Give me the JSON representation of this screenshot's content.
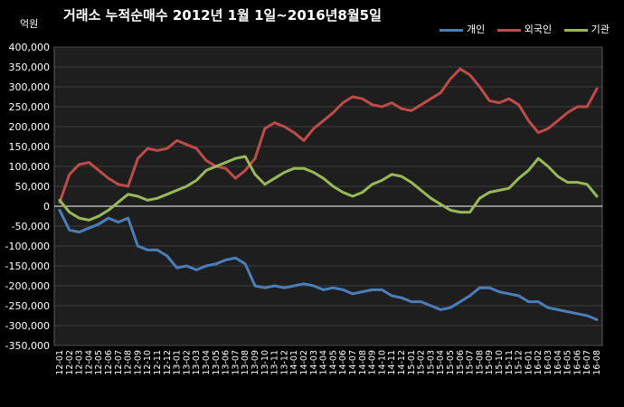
{
  "chart_data": {
    "type": "line",
    "title": "거래소  누적순매수 2012년 1월 1일~2016년8월5일",
    "unit_label": "억원",
    "ylim": [
      -350000,
      400000
    ],
    "y_ticks": [
      "400,000",
      "350,000",
      "300,000",
      "250,000",
      "200,000",
      "150,000",
      "100,000",
      "50,000",
      "0",
      "-50,000",
      "-100,000",
      "-150,000",
      "-200,000",
      "-250,000",
      "-300,000",
      "-350,000"
    ],
    "y_tick_values": [
      400000,
      350000,
      300000,
      250000,
      200000,
      150000,
      100000,
      50000,
      0,
      -50000,
      -100000,
      -150000,
      -200000,
      -250000,
      -300000,
      -350000
    ],
    "x_ticks": [
      "12-01",
      "12-02",
      "12-03",
      "12-04",
      "12-05",
      "12-06",
      "12-07",
      "12-08",
      "12-09",
      "12-10",
      "12-11",
      "12-12",
      "13-01",
      "13-02",
      "13-03",
      "13-04",
      "13-05",
      "13-06",
      "13-07",
      "13-08",
      "13-09",
      "13-10",
      "13-11",
      "13-12",
      "14-01",
      "14-02",
      "14-03",
      "14-04",
      "14-05",
      "14-06",
      "14-07",
      "14-08",
      "14-09",
      "14-10",
      "14-11",
      "14-12",
      "15-01",
      "15-02",
      "15-03",
      "15-04",
      "15-05",
      "15-06",
      "15-07",
      "15-08",
      "15-09",
      "15-10",
      "15-11",
      "15-12",
      "16-01",
      "16-02",
      "16-03",
      "16-04",
      "16-05",
      "16-06",
      "16-07",
      "16-08"
    ],
    "grid": "horizontal",
    "legend_position": "top-right",
    "series": [
      {
        "name": "개인",
        "color": "#4a7ebb",
        "values": [
          -10000,
          -60000,
          -65000,
          -55000,
          -45000,
          -30000,
          -40000,
          -30000,
          -100000,
          -110000,
          -110000,
          -125000,
          -155000,
          -150000,
          -160000,
          -150000,
          -145000,
          -135000,
          -130000,
          -145000,
          -200000,
          -205000,
          -200000,
          -205000,
          -200000,
          -195000,
          -200000,
          -210000,
          -205000,
          -210000,
          -220000,
          -215000,
          -210000,
          -210000,
          -225000,
          -230000,
          -240000,
          -240000,
          -250000,
          -260000,
          -255000,
          -240000,
          -225000,
          -205000,
          -205000,
          -215000,
          -220000,
          -225000,
          -240000,
          -240000,
          -255000,
          -260000,
          -265000,
          -270000,
          -275000,
          -285000
        ]
      },
      {
        "name": "외국인",
        "color": "#be4b48",
        "values": [
          10000,
          80000,
          105000,
          110000,
          90000,
          70000,
          55000,
          50000,
          120000,
          145000,
          140000,
          145000,
          165000,
          155000,
          145000,
          115000,
          100000,
          95000,
          70000,
          90000,
          120000,
          195000,
          210000,
          200000,
          185000,
          165000,
          195000,
          215000,
          235000,
          260000,
          275000,
          270000,
          255000,
          250000,
          260000,
          245000,
          240000,
          255000,
          270000,
          285000,
          320000,
          345000,
          330000,
          300000,
          265000,
          260000,
          270000,
          255000,
          215000,
          185000,
          195000,
          215000,
          235000,
          250000,
          250000,
          295000
        ]
      },
      {
        "name": "기관",
        "color": "#98b954",
        "values": [
          15000,
          -15000,
          -30000,
          -35000,
          -25000,
          -10000,
          10000,
          30000,
          25000,
          15000,
          20000,
          30000,
          40000,
          50000,
          65000,
          90000,
          100000,
          110000,
          120000,
          125000,
          80000,
          55000,
          70000,
          85000,
          95000,
          95000,
          85000,
          70000,
          50000,
          35000,
          25000,
          35000,
          55000,
          65000,
          80000,
          75000,
          60000,
          40000,
          20000,
          5000,
          -10000,
          -15000,
          -15000,
          20000,
          35000,
          40000,
          45000,
          70000,
          90000,
          120000,
          100000,
          75000,
          60000,
          60000,
          55000,
          25000
        ]
      }
    ]
  }
}
